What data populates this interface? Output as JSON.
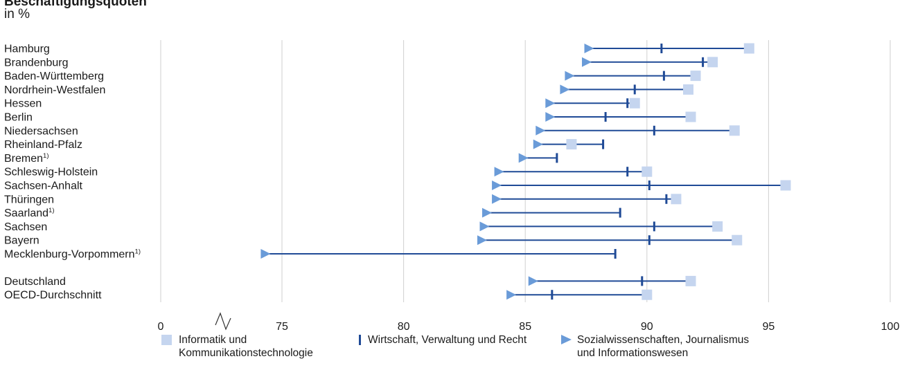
{
  "title": "Beschäftigungsquoten",
  "subtitle": "in %",
  "colors": {
    "informatik": "#c5d5ef",
    "wirtschaft": "#1f4a96",
    "sozial": "#6a9bd8",
    "line": "#1f4a96",
    "grid": "#cfcfcf"
  },
  "chart_data": {
    "type": "dot-range",
    "xlim": [
      72,
      100
    ],
    "axis_break": true,
    "x_ticks": [
      0,
      75,
      80,
      85,
      90,
      95,
      100
    ],
    "grid": true,
    "legend_position": "bottom",
    "series": [
      {
        "key": "informatik",
        "name": "Informatik und Kommunikationstechnologie",
        "marker": "square"
      },
      {
        "key": "wirtschaft",
        "name": "Wirtschaft, Verwaltung und Recht",
        "marker": "bar"
      },
      {
        "key": "sozial",
        "name": "Sozialwissenschaften, Journalismus und Informationswesen",
        "marker": "triangle"
      }
    ],
    "rows": [
      {
        "label": "Hamburg",
        "footnote": "",
        "informatik": 94.2,
        "wirtschaft": 90.6,
        "sozial": 87.6
      },
      {
        "label": "Brandenburg",
        "footnote": "",
        "informatik": 92.7,
        "wirtschaft": 92.3,
        "sozial": 87.5
      },
      {
        "label": "Baden-Württemberg",
        "footnote": "",
        "informatik": 92.0,
        "wirtschaft": 90.7,
        "sozial": 86.8
      },
      {
        "label": "Nordrhein-Westfalen",
        "footnote": "",
        "informatik": 91.7,
        "wirtschaft": 89.5,
        "sozial": 86.6
      },
      {
        "label": "Hessen",
        "footnote": "",
        "informatik": 89.5,
        "wirtschaft": 89.2,
        "sozial": 86.0
      },
      {
        "label": "Berlin",
        "footnote": "",
        "informatik": 91.8,
        "wirtschaft": 88.3,
        "sozial": 86.0
      },
      {
        "label": "Niedersachsen",
        "footnote": "",
        "informatik": 93.6,
        "wirtschaft": 90.3,
        "sozial": 85.6
      },
      {
        "label": "Rheinland-Pfalz",
        "footnote": "",
        "informatik": 86.9,
        "wirtschaft": 88.2,
        "sozial": 85.5
      },
      {
        "label": "Bremen",
        "footnote": "1)",
        "informatik": null,
        "wirtschaft": 86.3,
        "sozial": 84.9
      },
      {
        "label": "Schleswig-Holstein",
        "footnote": "",
        "informatik": 90.0,
        "wirtschaft": 89.2,
        "sozial": 83.9
      },
      {
        "label": "Sachsen-Anhalt",
        "footnote": "",
        "informatik": 95.7,
        "wirtschaft": 90.1,
        "sozial": 83.8
      },
      {
        "label": "Thüringen",
        "footnote": "",
        "informatik": 91.2,
        "wirtschaft": 90.8,
        "sozial": 83.8
      },
      {
        "label": "Saarland",
        "footnote": "1)",
        "informatik": null,
        "wirtschaft": 88.9,
        "sozial": 83.4
      },
      {
        "label": "Sachsen",
        "footnote": "",
        "informatik": 92.9,
        "wirtschaft": 90.3,
        "sozial": 83.3
      },
      {
        "label": "Bayern",
        "footnote": "",
        "informatik": 93.7,
        "wirtschaft": 90.1,
        "sozial": 83.2
      },
      {
        "label": "Mecklenburg-Vorpommern",
        "footnote": "1)",
        "informatik": null,
        "wirtschaft": 88.7,
        "sozial": 74.3
      },
      {
        "label": "Deutschland",
        "footnote": "",
        "gap": true,
        "informatik": 91.8,
        "wirtschaft": 89.8,
        "sozial": 85.3
      },
      {
        "label": "OECD-Durchschnitt",
        "footnote": "",
        "informatik": 90.0,
        "wirtschaft": 86.1,
        "sozial": 84.4
      }
    ]
  },
  "legend": {
    "informatik": [
      "Informatik und",
      "Kommunikationstechnologie"
    ],
    "wirtschaft": [
      "Wirtschaft, Verwaltung und Recht"
    ],
    "sozial": [
      "Sozialwissenschaften, Journalismus",
      "und Informationswesen"
    ]
  }
}
